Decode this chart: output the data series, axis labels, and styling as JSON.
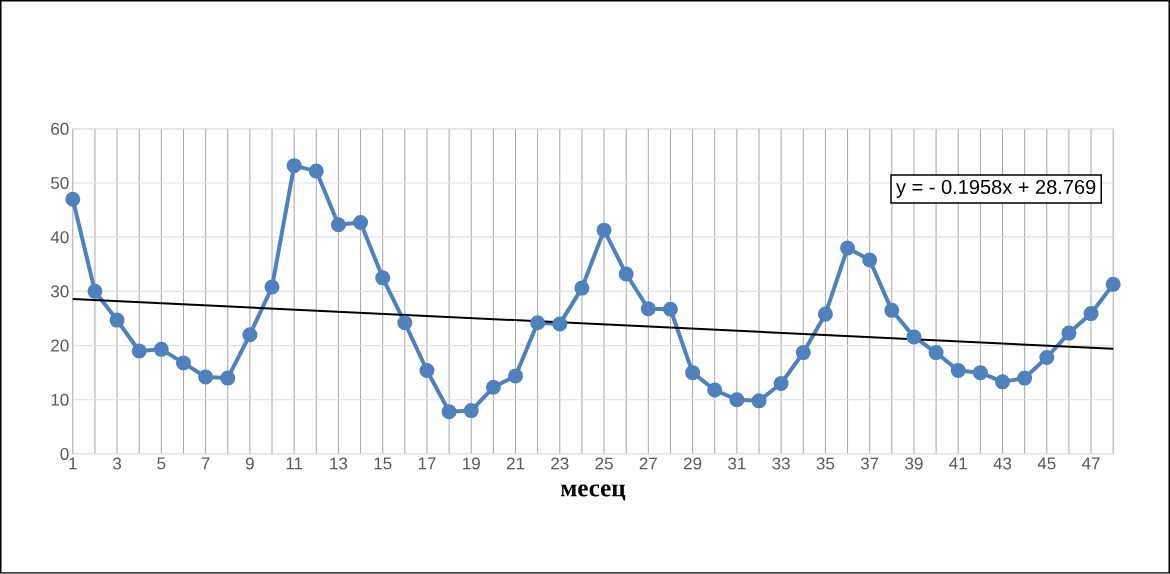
{
  "chart_data": {
    "type": "line",
    "xlabel": "месец",
    "x": [
      1,
      2,
      3,
      4,
      5,
      6,
      7,
      8,
      9,
      10,
      11,
      12,
      13,
      14,
      15,
      16,
      17,
      18,
      19,
      20,
      21,
      22,
      23,
      24,
      25,
      26,
      27,
      28,
      29,
      30,
      31,
      32,
      33,
      34,
      35,
      36,
      37,
      38,
      39,
      40,
      41,
      42,
      43,
      44,
      45,
      46,
      47,
      48
    ],
    "series": [
      {
        "color": "#4f81bd",
        "values": [
          47,
          30,
          24.7,
          19,
          19.3,
          16.8,
          14.2,
          14,
          22,
          30.8,
          53.2,
          52.2,
          42.3,
          42.7,
          32.5,
          24.2,
          15.4,
          7.8,
          8,
          12.3,
          14.4,
          24.2,
          24,
          30.6,
          41.3,
          33.2,
          26.8,
          26.7,
          15,
          11.8,
          10,
          9.8,
          13,
          18.7,
          25.8,
          38,
          35.8,
          26.5,
          21.6,
          18.7,
          15.4,
          15,
          13.3,
          14,
          17.8,
          22.3,
          25.9,
          31.3
        ],
        "marker": "circle"
      },
      {
        "type": "line",
        "color": "#000000",
        "x": [
          1,
          48
        ],
        "values": [
          28.6,
          19.4
        ],
        "marker": "none"
      }
    ],
    "xlim": [
      1,
      48
    ],
    "ylim": [
      0,
      60
    ],
    "xticks": [
      1,
      {
        "value": 2,
        "label": null
      },
      3,
      {
        "value": 4,
        "label": null
      },
      5,
      {
        "value": 6,
        "label": null
      },
      7,
      {
        "value": 8,
        "label": null
      },
      9,
      {
        "value": 10,
        "label": null
      },
      11,
      {
        "value": 12,
        "label": null
      },
      13,
      {
        "value": 14,
        "label": null
      },
      15,
      {
        "value": 16,
        "label": null
      },
      17,
      {
        "value": 18,
        "label": null
      },
      19,
      {
        "value": 20,
        "label": null
      },
      21,
      {
        "value": 22,
        "label": null
      },
      23,
      {
        "value": 24,
        "label": null
      },
      25,
      {
        "value": 26,
        "label": null
      },
      27,
      {
        "value": 28,
        "label": null
      },
      29,
      {
        "value": 30,
        "label": null
      },
      31,
      {
        "value": 32,
        "label": null
      },
      33,
      {
        "value": 34,
        "label": null
      },
      35,
      {
        "value": 36,
        "label": null
      },
      37,
      {
        "value": 38,
        "label": null
      },
      39,
      {
        "value": 40,
        "label": null
      },
      41,
      {
        "value": 42,
        "label": null
      },
      43,
      {
        "value": 44,
        "label": null
      },
      45,
      {
        "value": 46,
        "label": null
      },
      47,
      {
        "value": 48,
        "label": null
      }
    ],
    "yticks": [
      0,
      10,
      20,
      30,
      40,
      50,
      60
    ],
    "grid": true,
    "annotations": [
      "y = - 0.1958x + 28.769"
    ]
  }
}
